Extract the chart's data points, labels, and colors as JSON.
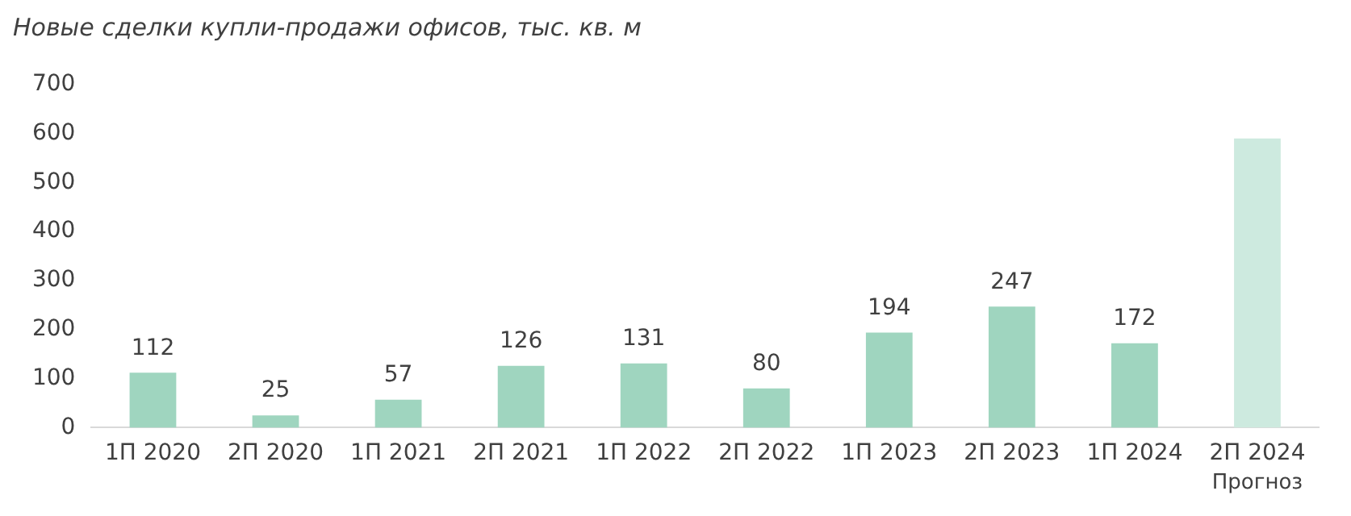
{
  "chart_data": {
    "type": "bar",
    "title": "Новые сделки купли-продажи офисов, тыс. кв. м",
    "categories": [
      "1П 2020",
      "2П 2020",
      "1П 2021",
      "2П 2021",
      "1П 2022",
      "2П 2022",
      "1П 2023",
      "2П 2023",
      "1П 2024",
      "2П 2024"
    ],
    "values": [
      112,
      25,
      57,
      126,
      131,
      80,
      194,
      247,
      172,
      590
    ],
    "value_labels": [
      "112",
      "25",
      "57",
      "126",
      "131",
      "80",
      "194",
      "247",
      "172",
      null
    ],
    "colors": [
      "#9fd5bf",
      "#9fd5bf",
      "#9fd5bf",
      "#9fd5bf",
      "#9fd5bf",
      "#9fd5bf",
      "#9fd5bf",
      "#9fd5bf",
      "#9fd5bf",
      "#cdeadf"
    ],
    "annotations": [
      "Прогноз"
    ],
    "ylim": [
      0,
      700
    ],
    "yticks": [
      0,
      100,
      200,
      300,
      400,
      500,
      600,
      700
    ],
    "grid": false,
    "legend": false
  }
}
